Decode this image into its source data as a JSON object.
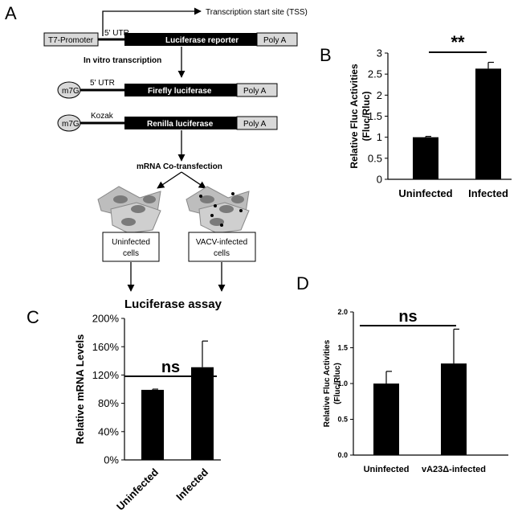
{
  "panels": {
    "a": "A",
    "b": "B",
    "c": "C",
    "d": "D"
  },
  "diagram": {
    "tss": "Transcription start site (TSS)",
    "t7": "T7-Promoter",
    "utr1": "5' UTR",
    "reporter": "Luciferase reporter",
    "polya1": "Poly A",
    "ivt": "In vitro transcription",
    "cap1": "m7G",
    "utr2": "5' UTR",
    "firefly": "Firefly luciferase",
    "polya2": "Poly A",
    "cap2": "m7G",
    "kozak": "Kozak",
    "renilla": "Renilla luciferase",
    "polya3": "Poly A",
    "cotrans": "mRNA Co-transfection",
    "uninf1": "Uninfected",
    "uninf2": "cells",
    "vacv1": "VACV-infected",
    "vacv2": "cells",
    "assay": "Luciferase assay"
  },
  "chart_data": [
    {
      "panel": "B",
      "type": "bar",
      "categories": [
        "Uninfected",
        "Infected"
      ],
      "values": [
        1.0,
        2.63
      ],
      "errors": [
        0.02,
        0.15
      ],
      "ylabel": "Relative Fluc Activities (Fluc/Rluc)",
      "ylabel_lines": [
        "Relative Fluc Activities",
        "(Fluc/Rluc)"
      ],
      "ylim": [
        0,
        3
      ],
      "yticks": [
        "0",
        "0.5",
        "1",
        "1.5",
        "2",
        "2.5",
        "3"
      ],
      "significance": "**",
      "color": "#000000"
    },
    {
      "panel": "C",
      "type": "bar",
      "categories": [
        "Uninfected",
        "Infected"
      ],
      "values": [
        0.99,
        1.31
      ],
      "errors": [
        0.01,
        0.37
      ],
      "ylabel": "Relative mRNA Levels",
      "ylim": [
        0,
        2.0
      ],
      "yticks": [
        "0%",
        "40%",
        "80%",
        "120%",
        "160%",
        "200%"
      ],
      "significance": "ns",
      "color": "#000000"
    },
    {
      "panel": "D",
      "type": "bar",
      "categories": [
        "Uninfected",
        "vA23Δ-infected"
      ],
      "values": [
        1.0,
        1.28
      ],
      "errors": [
        0.17,
        0.48
      ],
      "ylabel": "Relative Fluc Activities (Fluc/Rluc)",
      "ylabel_lines": [
        "Relative Fluc Activities",
        "(Fluc/Rluc)"
      ],
      "ylim": [
        0,
        2.0
      ],
      "yticks": [
        "0.0",
        "0.5",
        "1.0",
        "1.5",
        "2.0"
      ],
      "significance": "ns",
      "color": "#000000"
    }
  ]
}
